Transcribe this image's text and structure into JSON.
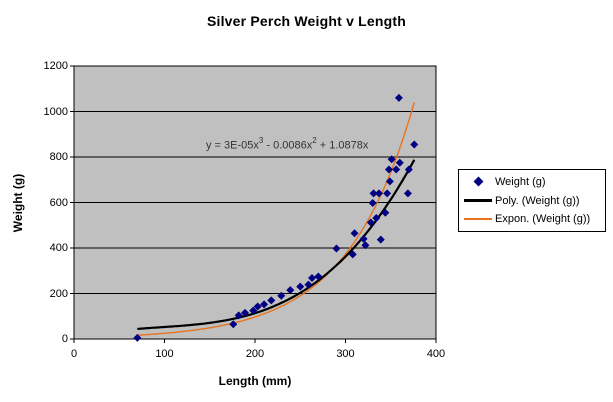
{
  "chart_title": "Silver Perch Weight v Length",
  "chart_data": {
    "type": "scatter",
    "title": "Silver Perch Weight v Length",
    "xlabel": "Length (mm)",
    "ylabel": "Weight (g)",
    "xlim": [
      0,
      400
    ],
    "ylim": [
      0,
      1200
    ],
    "x_ticks": [
      0,
      100,
      200,
      300,
      400
    ],
    "y_ticks": [
      0,
      200,
      400,
      600,
      800,
      1000,
      1200
    ],
    "grid": "horizontal",
    "plot_bg_color": "#C0C0C0",
    "gridline_color": "#000000",
    "series": [
      {
        "name": "Weight (g)",
        "kind": "scatter",
        "marker": "diamond",
        "color": "#000080",
        "points": [
          [
            70,
            5
          ],
          [
            176,
            65
          ],
          [
            182,
            104
          ],
          [
            189,
            115
          ],
          [
            198,
            125
          ],
          [
            203,
            143
          ],
          [
            210,
            152
          ],
          [
            218,
            170
          ],
          [
            229,
            190
          ],
          [
            239,
            215
          ],
          [
            250,
            230
          ],
          [
            259,
            239
          ],
          [
            263,
            268
          ],
          [
            270,
            275
          ],
          [
            290,
            398
          ],
          [
            308,
            372
          ],
          [
            310,
            465
          ],
          [
            320,
            440
          ],
          [
            322,
            412
          ],
          [
            328,
            512
          ],
          [
            334,
            532
          ],
          [
            339,
            437
          ],
          [
            344,
            555
          ],
          [
            330,
            598
          ],
          [
            331,
            640
          ],
          [
            337,
            640
          ],
          [
            346,
            640
          ],
          [
            369,
            640
          ],
          [
            349,
            693
          ],
          [
            348,
            745
          ],
          [
            356,
            745
          ],
          [
            370,
            745
          ],
          [
            351,
            790
          ],
          [
            360,
            775
          ],
          [
            376,
            855
          ],
          [
            359,
            1060
          ]
        ]
      },
      {
        "name": "Poly. (Weight (g))",
        "kind": "trendline-polynomial",
        "color": "#000000",
        "width": 2.2,
        "coefficients": {
          "x3": 3e-05,
          "x2": -0.0086,
          "x1": 1.0878
        },
        "x_range": [
          70,
          376
        ]
      },
      {
        "name": "Expon. (Weight (g))",
        "kind": "trendline-exponential",
        "color": "#E8731D",
        "width": 1.4,
        "estimated_fit": {
          "a": 6.5,
          "b": 0.0135
        },
        "x_range": [
          70,
          376
        ]
      }
    ],
    "equation": {
      "p1": "y = 3E-05x",
      "s1": "3",
      "p2": " - 0.0086x",
      "s2": "2",
      "p3": " + 1.0878x"
    },
    "legend": {
      "position": "right",
      "entries": [
        "Weight (g)",
        "Poly. (Weight (g))",
        "Expon. (Weight (g))"
      ]
    }
  }
}
